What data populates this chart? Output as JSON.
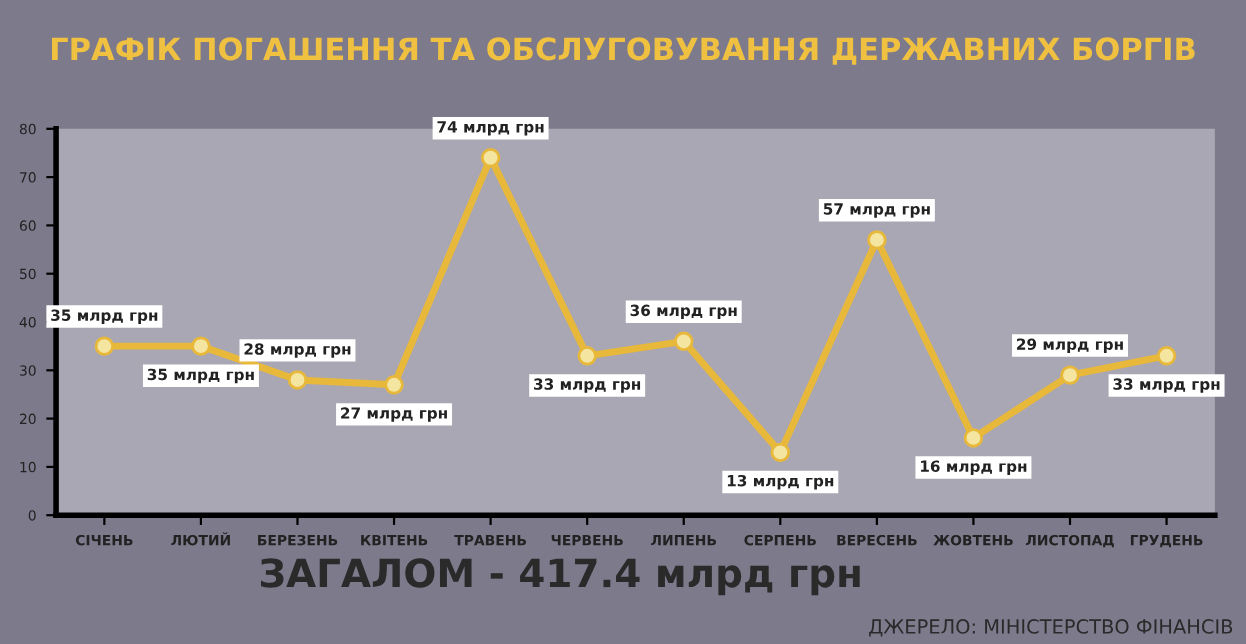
{
  "chart_data": {
    "type": "line",
    "title": "ГРАФІК ПОГАШЕННЯ ТА ОБСЛУГОВУВАННЯ ДЕРЖАВНИХ БОРГІВ",
    "categories": [
      "СІЧЕНЬ",
      "ЛЮТИЙ",
      "БЕРЕЗЕНЬ",
      "КВІТЕНЬ",
      "ТРАВЕНЬ",
      "ЧЕРВЕНЬ",
      "ЛИПЕНЬ",
      "СЕРПЕНЬ",
      "ВЕРЕСЕНЬ",
      "ЖОВТЕНЬ",
      "ЛИСТОПАД",
      "ГРУДЕНЬ"
    ],
    "series": [
      {
        "color": "#e8b83a",
        "values": [
          35,
          35,
          28,
          27,
          74,
          33,
          36,
          13,
          57,
          16,
          29,
          33
        ],
        "value_labels": [
          "35 млрд грн",
          "35 млрд грн",
          "28 млрд грн",
          "27 млрд грн",
          "74 млрд грн",
          "33 млрд грн",
          "36 млрд грн",
          "13 млрд грн",
          "57 млрд грн",
          "16 млрд грн",
          "29 млрд грн",
          "33 млрд грн"
        ]
      }
    ],
    "ylim": [
      0,
      80
    ],
    "yticks": [
      0,
      10,
      20,
      30,
      40,
      50,
      60,
      70,
      80
    ],
    "marker": "circle",
    "grid": false,
    "legend": false,
    "annotations": [
      "ЗАГАЛОМ - 417.4 млрд грн",
      "ДЖЕРЕЛО: МІНІСТЕРСТВО ФІНАНСІВ"
    ]
  }
}
